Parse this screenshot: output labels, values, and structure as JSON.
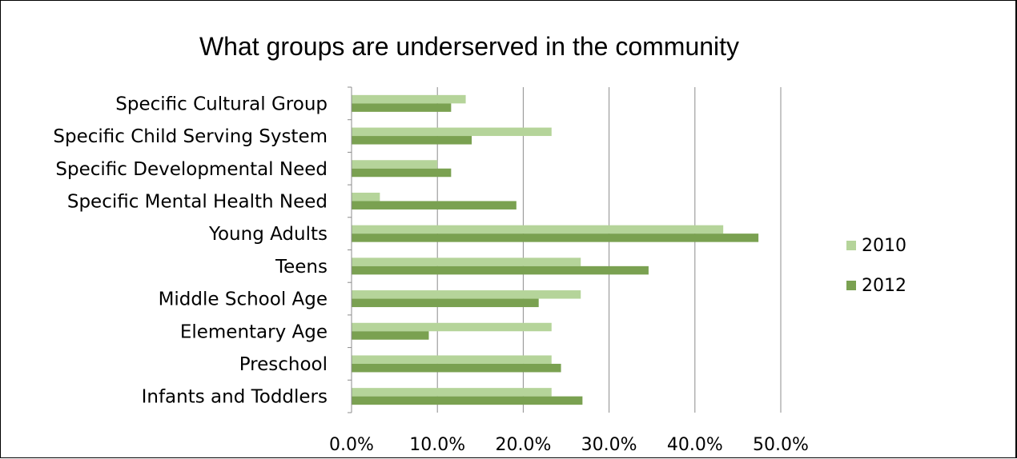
{
  "chart_data": {
    "type": "bar",
    "orientation": "horizontal",
    "title": "What groups are underserved in the community",
    "xlabel": "",
    "ylabel": "",
    "xlim": [
      0,
      50
    ],
    "ticks": [
      0,
      10,
      20,
      30,
      40,
      50
    ],
    "tick_labels": [
      "0.0%",
      "10.0%",
      "20.0%",
      "30.0%",
      "40.0%",
      "50.0%"
    ],
    "grid": true,
    "legend_position": "right",
    "categories": [
      "Specific Cultural Group",
      "Specific Child Serving System",
      "Specific Developmental Need",
      "Specific Mental Health Need",
      "Young Adults",
      "Teens",
      "Middle School Age",
      "Elementary Age",
      "Preschool",
      "Infants and Toddlers"
    ],
    "series": [
      {
        "name": "2010",
        "color": "#b5d49a",
        "values": [
          13.3,
          23.3,
          10.0,
          3.3,
          43.3,
          26.7,
          26.7,
          23.3,
          23.3,
          23.3
        ]
      },
      {
        "name": "2012",
        "color": "#7aa151",
        "values": [
          11.6,
          14.0,
          11.6,
          19.2,
          47.4,
          34.6,
          21.8,
          9.0,
          24.4,
          26.9
        ]
      }
    ]
  }
}
